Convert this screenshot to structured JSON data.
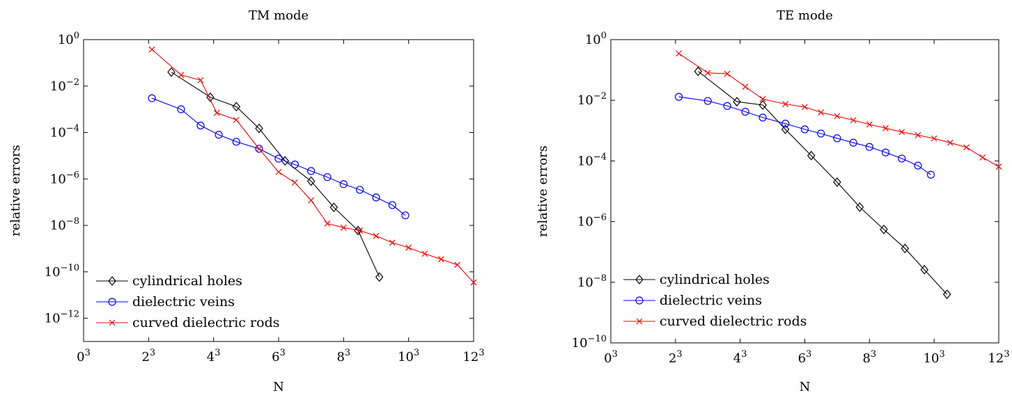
{
  "chart_data": [
    {
      "type": "line",
      "title": "TM mode",
      "xlabel": "N",
      "ylabel": "relative errors",
      "x_scale": "cube-root",
      "y_scale": "log",
      "xlim": [
        0,
        1728
      ],
      "ylim": [
        1e-13,
        1
      ],
      "grid": false,
      "legend_position": "bottom-left",
      "xticks": [
        {
          "value": 0,
          "base": "0",
          "exp": "3"
        },
        {
          "value": 8,
          "base": "2",
          "exp": "3"
        },
        {
          "value": 64,
          "base": "4",
          "exp": "3"
        },
        {
          "value": 216,
          "base": "6",
          "exp": "3"
        },
        {
          "value": 512,
          "base": "8",
          "exp": "3"
        },
        {
          "value": 1000,
          "base": "10",
          "exp": "3"
        },
        {
          "value": 1728,
          "base": "12",
          "exp": "3"
        }
      ],
      "yticks": [
        {
          "value": 1,
          "base": "10",
          "exp": "0"
        },
        {
          "value": 0.01,
          "base": "10",
          "exp": "−2"
        },
        {
          "value": 0.0001,
          "base": "10",
          "exp": "−4"
        },
        {
          "value": 1e-06,
          "base": "10",
          "exp": "−6"
        },
        {
          "value": 1e-08,
          "base": "10",
          "exp": "−8"
        },
        {
          "value": 1e-10,
          "base": "10",
          "exp": "−10"
        },
        {
          "value": 1e-12,
          "base": "10",
          "exp": "−12"
        }
      ],
      "series": [
        {
          "name": "cylindrical holes",
          "color": "#000000",
          "marker": "diamond",
          "x": [
            19.7,
            59.3,
            103.8,
            157.5,
            238.3,
            343.0,
            456.5,
            602.2,
            753.6
          ],
          "y": [
            0.04,
            0.0033,
            0.0013,
            0.00015,
            6e-06,
            8e-07,
            6e-08,
            6e-09,
            6e-11
          ]
        },
        {
          "name": "dielectric veins",
          "color": "#0000ff",
          "marker": "circle",
          "x": [
            9.3,
            27.0,
            46.7,
            72.0,
            103.8,
            157.5,
            216.0,
            274.6,
            343.0,
            421.9,
            512.0,
            614.1,
            729.0,
            857.4,
            970.3
          ],
          "y": [
            0.003,
            0.001,
            0.0002,
            8e-05,
            4e-05,
            2e-05,
            7.5e-06,
            4.2e-06,
            2.2e-06,
            1.2e-06,
            6e-07,
            3.4e-07,
            1.6e-07,
            7.5e-08,
            2.7e-08
          ]
        },
        {
          "name": "curved dielectric rods",
          "color": "#ff0000",
          "marker": "x",
          "x": [
            9.3,
            27.0,
            46.7,
            68.9,
            103.8,
            157.5,
            216.0,
            274.6,
            343.0,
            421.9,
            512.0,
            614.1,
            729.0,
            857.4,
            1000.0,
            1157.6,
            1331.0,
            1520.9,
            1728.0
          ],
          "y": [
            0.38,
            0.03,
            0.018,
            0.0007,
            0.00035,
            2e-05,
            2e-06,
            7e-07,
            1.2e-07,
            1.2e-08,
            8e-09,
            6e-09,
            3.5e-09,
            1.8e-09,
            1.1e-09,
            6e-10,
            3.5e-10,
            2e-10,
            3.5e-11
          ]
        }
      ]
    },
    {
      "type": "line",
      "title": "TE mode",
      "xlabel": "N",
      "ylabel": "relative errors",
      "x_scale": "cube-root",
      "y_scale": "log",
      "xlim": [
        0,
        1728
      ],
      "ylim": [
        1e-10,
        1
      ],
      "grid": false,
      "legend_position": "bottom-left",
      "xticks": [
        {
          "value": 0,
          "base": "0",
          "exp": "3"
        },
        {
          "value": 8,
          "base": "2",
          "exp": "3"
        },
        {
          "value": 64,
          "base": "4",
          "exp": "3"
        },
        {
          "value": 216,
          "base": "6",
          "exp": "3"
        },
        {
          "value": 512,
          "base": "8",
          "exp": "3"
        },
        {
          "value": 1000,
          "base": "10",
          "exp": "3"
        },
        {
          "value": 1728,
          "base": "12",
          "exp": "3"
        }
      ],
      "yticks": [
        {
          "value": 1,
          "base": "10",
          "exp": "0"
        },
        {
          "value": 0.01,
          "base": "10",
          "exp": "−2"
        },
        {
          "value": 0.0001,
          "base": "10",
          "exp": "−4"
        },
        {
          "value": 1e-06,
          "base": "10",
          "exp": "−6"
        },
        {
          "value": 1e-08,
          "base": "10",
          "exp": "−8"
        },
        {
          "value": 1e-10,
          "base": "10",
          "exp": "−10"
        }
      ],
      "series": [
        {
          "name": "cylindrical holes",
          "color": "#000000",
          "marker": "diamond",
          "x": [
            19.7,
            59.3,
            103.8,
            157.5,
            238.3,
            343.0,
            456.5,
            602.2,
            753.6,
            912.7,
            1124.9
          ],
          "y": [
            0.09,
            0.009,
            0.007,
            0.0011,
            0.00015,
            2e-05,
            3e-06,
            5.5e-07,
            1.3e-07,
            2.6e-08,
            4e-09
          ]
        },
        {
          "name": "dielectric veins",
          "color": "#0000ff",
          "marker": "circle",
          "x": [
            9.3,
            27.0,
            46.7,
            72.0,
            103.8,
            157.5,
            216.0,
            274.6,
            343.0,
            421.9,
            512.0,
            614.1,
            729.0,
            857.4,
            970.3
          ],
          "y": [
            0.013,
            0.0095,
            0.0065,
            0.0042,
            0.0027,
            0.0017,
            0.0011,
            0.0008,
            0.00056,
            0.0004,
            0.00029,
            0.00019,
            0.00012,
            7e-05,
            3.5e-05
          ]
        },
        {
          "name": "curved dielectric rods",
          "color": "#ff0000",
          "marker": "x",
          "x": [
            9.3,
            27.0,
            46.7,
            72.0,
            103.8,
            157.5,
            216.0,
            274.6,
            343.0,
            421.9,
            512.0,
            614.1,
            729.0,
            857.4,
            1000.0,
            1157.6,
            1331.0,
            1520.9,
            1728.0
          ],
          "y": [
            0.35,
            0.08,
            0.075,
            0.028,
            0.011,
            0.0075,
            0.006,
            0.004,
            0.003,
            0.0022,
            0.0016,
            0.0012,
            0.0009,
            0.00071,
            0.00055,
            0.0004,
            0.00028,
            0.00013,
            6.5e-05
          ]
        }
      ]
    }
  ]
}
